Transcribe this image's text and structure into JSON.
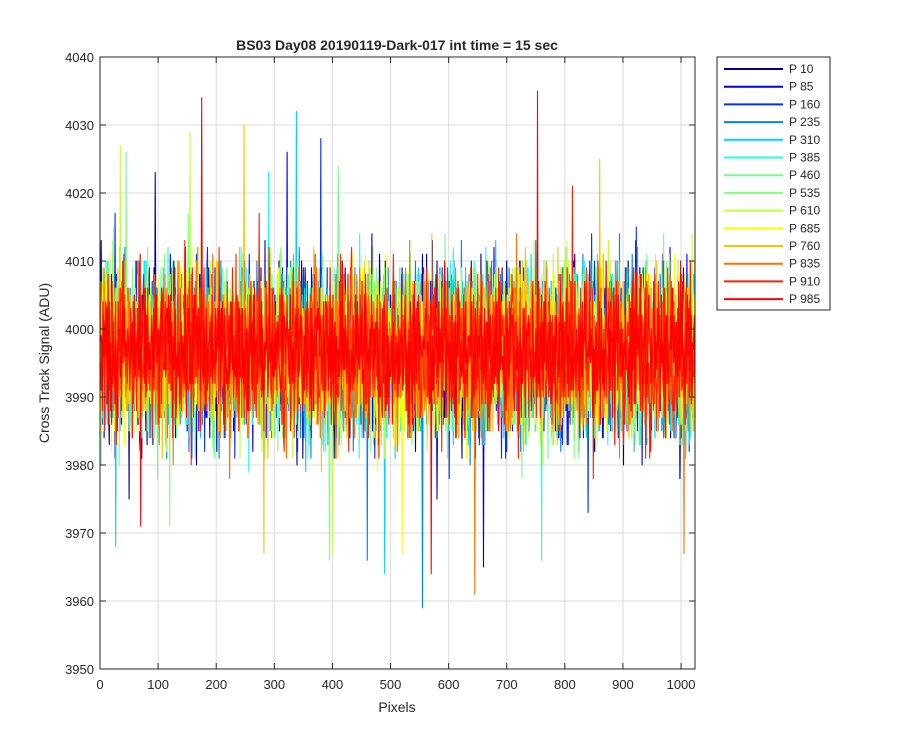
{
  "chart_data": {
    "type": "line",
    "title": "BS03 Day08 20190119-Dark-017 int time = 15 sec",
    "xlabel": "Pixels",
    "ylabel": "Cross Track Signal (ADU)",
    "xlim": [
      0,
      1024
    ],
    "ylim": [
      3950,
      4040
    ],
    "xticks": [
      0,
      100,
      200,
      300,
      400,
      500,
      600,
      700,
      800,
      900,
      1000
    ],
    "yticks": [
      3950,
      3960,
      3970,
      3980,
      3990,
      4000,
      4010,
      4020,
      4030,
      4040
    ],
    "grid": true,
    "legend_position": "outside-top-right",
    "series": [
      {
        "name": "P 10",
        "color": "#00008F",
        "mean": 3997,
        "spread": 6,
        "spikes": [
          [
            95,
            4023
          ],
          [
            50,
            3975
          ]
        ]
      },
      {
        "name": "P 85",
        "color": "#0000DF",
        "mean": 3997,
        "spread": 6,
        "spikes": [
          [
            322,
            4026
          ],
          [
            580,
            3975
          ],
          [
            660,
            3965
          ]
        ]
      },
      {
        "name": "P 160",
        "color": "#0030FF",
        "mean": 3997,
        "spread": 6,
        "spikes": [
          [
            380,
            4028
          ],
          [
            840,
            3973
          ]
        ]
      },
      {
        "name": "P 235",
        "color": "#0080FF",
        "mean": 3997,
        "spread": 6,
        "spikes": [
          [
            555,
            3959
          ],
          [
            460,
            3966
          ]
        ]
      },
      {
        "name": "P 310",
        "color": "#00CFFF",
        "mean": 3997,
        "spread": 6,
        "spikes": [
          [
            338,
            4032
          ],
          [
            27,
            3968
          ],
          [
            490,
            3964
          ]
        ]
      },
      {
        "name": "P 385",
        "color": "#20FFDF",
        "mean": 3997,
        "spread": 6,
        "spikes": [
          [
            290,
            4023
          ],
          [
            760,
            3966
          ]
        ]
      },
      {
        "name": "P 460",
        "color": "#70FF8F",
        "mean": 3997,
        "spread": 6,
        "spikes": [
          [
            410,
            4024
          ],
          [
            395,
            3966
          ]
        ]
      },
      {
        "name": "P 535",
        "color": "#80FF80",
        "mean": 3997,
        "spread": 6,
        "spikes": [
          [
            45,
            4026
          ],
          [
            120,
            3971
          ]
        ]
      },
      {
        "name": "P 610",
        "color": "#C0FF40",
        "mean": 3997,
        "spread": 6,
        "spikes": [
          [
            35,
            4027
          ],
          [
            155,
            4029
          ],
          [
            400,
            3967
          ]
        ]
      },
      {
        "name": "P 685",
        "color": "#FFFF00",
        "mean": 3997,
        "spread": 6,
        "spikes": [
          [
            520,
            3967
          ]
        ]
      },
      {
        "name": "P 760",
        "color": "#FFC000",
        "mean": 3997,
        "spread": 6,
        "spikes": [
          [
            248,
            4030
          ],
          [
            282,
            3967
          ],
          [
            860,
            4025
          ]
        ]
      },
      {
        "name": "P 835",
        "color": "#FF7000",
        "mean": 3997,
        "spread": 6,
        "spikes": [
          [
            645,
            3961
          ],
          [
            1005,
            3967
          ]
        ]
      },
      {
        "name": "P 910",
        "color": "#FF2000",
        "mean": 3997,
        "spread": 6,
        "spikes": [
          [
            813,
            4021
          ]
        ]
      },
      {
        "name": "P 985",
        "color": "#FF0000",
        "mean": 3997,
        "spread": 5,
        "spikes": [
          [
            175,
            4034
          ],
          [
            753,
            4035
          ],
          [
            570,
            3964
          ],
          [
            70,
            3971
          ]
        ]
      }
    ]
  }
}
